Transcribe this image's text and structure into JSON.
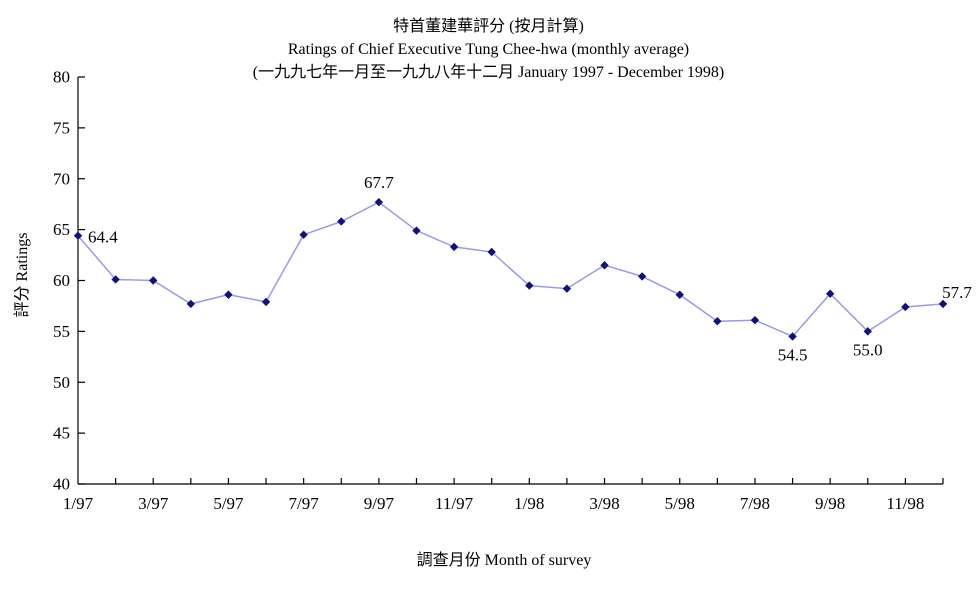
{
  "title": {
    "line1_zh": "特首董建華評分 (按月計算)",
    "line2_en": "Ratings of Chief Executive Tung Chee-hwa (monthly average)",
    "line3_range": "(一九九七年一月至一九九八年十二月 January 1997 - December 1998)"
  },
  "chart_data": {
    "type": "line",
    "title": "特首董建華評分 (按月計算) — Ratings of Chief Executive Tung Chee-hwa (monthly average)",
    "subtitle": "(一九九七年一月至一九九八年十二月 January 1997 - December 1998)",
    "xlabel": "調查月份 Month of survey",
    "ylabel": "評分 Ratings",
    "ylim": [
      40,
      80
    ],
    "ytick_step": 5,
    "grid": false,
    "legend_position": "none",
    "categories": [
      "1/97",
      "2/97",
      "3/97",
      "4/97",
      "5/97",
      "6/97",
      "7/97",
      "8/97",
      "9/97",
      "10/97",
      "11/97",
      "12/97",
      "1/98",
      "2/98",
      "3/98",
      "4/98",
      "5/98",
      "6/98",
      "7/98",
      "8/98",
      "9/98",
      "10/98",
      "11/98",
      "12/98"
    ],
    "values": [
      64.4,
      60.1,
      60.0,
      57.7,
      58.6,
      57.9,
      64.5,
      65.8,
      67.7,
      64.9,
      63.3,
      62.8,
      59.5,
      59.2,
      61.5,
      60.4,
      58.6,
      56.0,
      56.1,
      54.5,
      58.7,
      55.0,
      57.4,
      57.7
    ],
    "x_tick_labels": [
      "1/97",
      "3/97",
      "5/97",
      "7/97",
      "9/97",
      "11/97",
      "1/98",
      "3/98",
      "5/98",
      "7/98",
      "9/98",
      "11/98"
    ],
    "point_labels": [
      {
        "index": 0,
        "text": "64.4",
        "placement": "right"
      },
      {
        "index": 8,
        "text": "67.7",
        "placement": "above"
      },
      {
        "index": 19,
        "text": "54.5",
        "placement": "below"
      },
      {
        "index": 21,
        "text": "55.0",
        "placement": "below"
      },
      {
        "index": 23,
        "text": "57.7",
        "placement": "above-right"
      }
    ],
    "colors": {
      "line": "#9999ee",
      "marker": "#10107e",
      "axis": "#000000",
      "text": "#000000",
      "background": "#ffffff"
    }
  }
}
